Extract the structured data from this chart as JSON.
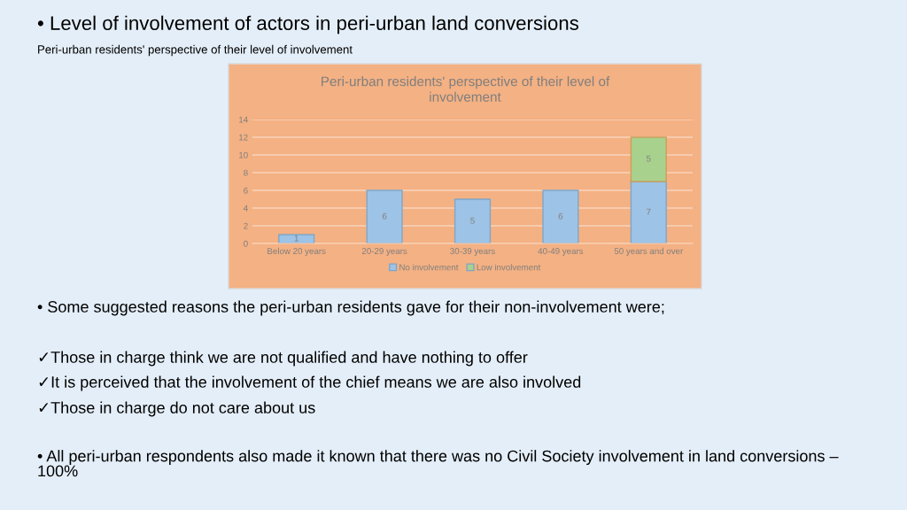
{
  "chart_data": {
    "type": "bar",
    "title": "• Level of involvement of actors in peri-urban land conversions",
    "subtitle": "Peri-urban residents' perspective of their level of involvement",
    "categories": [
      "Below 20 years",
      "20-29 years",
      "30-39 years",
      "40-49 years",
      "50 years and over"
    ],
    "series": [
      {
        "name": "No involvement",
        "color": "#9dc3e6",
        "values": [
          1,
          6,
          5,
          6,
          7
        ]
      },
      {
        "name": "Low involvement",
        "color": "#a9d18e",
        "values": [
          null,
          null,
          null,
          null,
          5
        ]
      }
    ],
    "stacked": true,
    "ylim": [
      0,
      14
    ],
    "yticks": [
      0,
      2,
      4,
      6,
      8,
      10,
      12,
      14
    ],
    "grid": "y",
    "legend": "bottom",
    "data_labels": true,
    "annotations": [
      "Peri-urban residents' perspective of their level of involvement",
      "• Some suggested reasons the peri-urban residents gave for their non-involvement were;",
      "✓Those in charge think we are not qualified and have nothing to offer",
      "✓It is perceived that the involvement of the chief means we are also involved",
      "✓Those in charge do not care about us",
      "• All peri-urban respondents also made it known that there was no Civil Society involvement in land conversions – 100%"
    ]
  }
}
